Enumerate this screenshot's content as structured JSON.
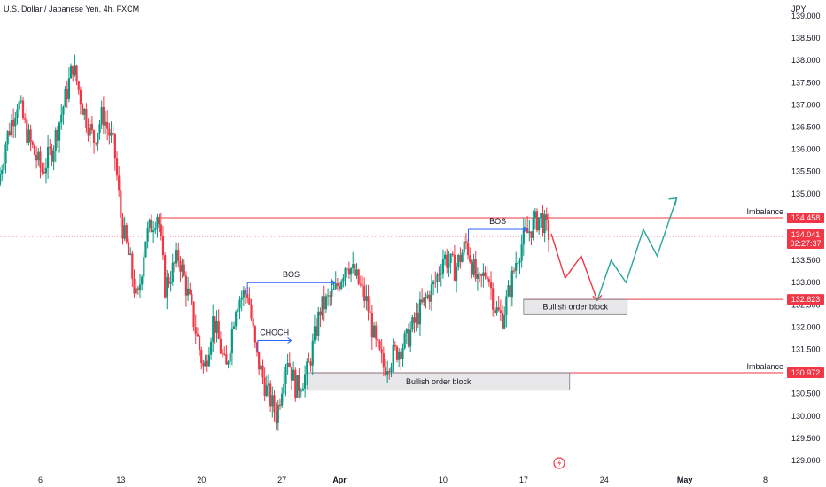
{
  "chart_data": {
    "type": "candlestick",
    "title": "U.S. Dollar / Japanese Yen, 4h, FXCM",
    "currency": "JPY",
    "y_ticks": [
      129.0,
      129.5,
      130.0,
      130.5,
      131.0,
      131.5,
      132.0,
      132.5,
      133.0,
      133.5,
      134.0,
      134.5,
      135.0,
      135.5,
      136.0,
      136.5,
      137.0,
      137.5,
      138.0,
      138.5,
      139.0
    ],
    "y_tick_labels": [
      "129.000",
      "129.500",
      "130.000",
      "130.500",
      "131.000",
      "131.500",
      "132.000",
      "132.500",
      "133.000",
      "133.500",
      "134.000",
      "134.500",
      "135.000",
      "135.500",
      "136.000",
      "136.500",
      "137.000",
      "137.500",
      "138.000",
      "138.500",
      "139.000"
    ],
    "ylim": [
      128.8,
      139.2
    ],
    "x_ticks": [
      {
        "label": "6",
        "day": 6
      },
      {
        "label": "13",
        "day": 13
      },
      {
        "label": "20",
        "day": 20
      },
      {
        "label": "27",
        "day": 27
      },
      {
        "label": "Apr",
        "day": 32
      },
      {
        "label": "10",
        "day": 41
      },
      {
        "label": "17",
        "day": 48
      },
      {
        "label": "24",
        "day": 55
      },
      {
        "label": "May",
        "day": 62
      },
      {
        "label": "8",
        "day": 69
      }
    ],
    "xlim": [
      2.5,
      70.5
    ],
    "anchors": [
      [
        2.5,
        135.2
      ],
      [
        3.2,
        136.2
      ],
      [
        4.2,
        137.1
      ],
      [
        5.2,
        136.2
      ],
      [
        6.3,
        135.5
      ],
      [
        7.2,
        136.0
      ],
      [
        8.4,
        137.2
      ],
      [
        9.0,
        137.9
      ],
      [
        9.8,
        137.0
      ],
      [
        10.8,
        136.2
      ],
      [
        11.6,
        136.8
      ],
      [
        12.6,
        136.0
      ],
      [
        13.2,
        134.4
      ],
      [
        14.0,
        133.4
      ],
      [
        14.6,
        132.5
      ],
      [
        15.3,
        134.0
      ],
      [
        16.4,
        134.6
      ],
      [
        17.0,
        132.9
      ],
      [
        18.2,
        133.6
      ],
      [
        19.3,
        132.4
      ],
      [
        20.4,
        131.0
      ],
      [
        21.2,
        132.2
      ],
      [
        22.3,
        131.0
      ],
      [
        23.2,
        132.6
      ],
      [
        24.2,
        132.8
      ],
      [
        24.9,
        131.4
      ],
      [
        25.8,
        130.6
      ],
      [
        26.7,
        130.0
      ],
      [
        27.6,
        131.4
      ],
      [
        28.4,
        130.6
      ],
      [
        29.4,
        131.0
      ],
      [
        30.5,
        132.4
      ],
      [
        31.8,
        132.8
      ],
      [
        32.8,
        133.5
      ],
      [
        33.8,
        133.0
      ],
      [
        34.6,
        132.5
      ],
      [
        35.3,
        131.6
      ],
      [
        36.0,
        131.1
      ],
      [
        36.6,
        131.3
      ],
      [
        38.0,
        131.7
      ],
      [
        39.2,
        132.4
      ],
      [
        40.5,
        133.0
      ],
      [
        41.2,
        133.6
      ],
      [
        42.2,
        133.3
      ],
      [
        43.2,
        133.9
      ],
      [
        44.2,
        132.9
      ],
      [
        45.0,
        133.3
      ],
      [
        45.7,
        132.4
      ],
      [
        46.3,
        132.2
      ],
      [
        47.0,
        132.9
      ],
      [
        47.6,
        133.6
      ],
      [
        48.2,
        134.0
      ],
      [
        49.0,
        134.3
      ],
      [
        49.6,
        134.5
      ],
      [
        50.3,
        134.1
      ]
    ],
    "price_tags": [
      {
        "value": 134.458,
        "label": "134.458",
        "color": "#f23645"
      },
      {
        "value": 134.041,
        "label": "134.041",
        "sub": "02:27:37",
        "color": "#f23645"
      },
      {
        "value": 132.623,
        "label": "132.623",
        "color": "#f23645"
      },
      {
        "value": 130.972,
        "label": "130.972",
        "color": "#f23645"
      }
    ],
    "annotations": {
      "imbalance_top": {
        "label": "Imbalance",
        "price": 134.458,
        "x_start": 16.5
      },
      "imbalance_bottom": {
        "label": "Imbalance",
        "price": 130.972,
        "x_start": 29.5
      },
      "bos_1": {
        "label": "BOS",
        "price": 133.0,
        "x_start": 24.0,
        "x_end": 31.6
      },
      "bos_2": {
        "label": "BOS",
        "price": 134.2,
        "x_start": 43.2,
        "x_end": 48.3
      },
      "choch": {
        "label": "CHOCH",
        "price": 131.7,
        "x_start": 24.9,
        "x_end": 27.8
      },
      "order_block_1": {
        "label": "Bullish order block",
        "top": 132.623,
        "bottom": 132.28,
        "x_start": 48.0,
        "x_end": 57.0
      },
      "order_block_2": {
        "label": "Bullish order block",
        "top": 130.972,
        "bottom": 130.58,
        "x_start": 29.2,
        "x_end": 52.0
      }
    },
    "projection_red": [
      [
        50.4,
        134.1
      ],
      [
        51.6,
        133.1
      ],
      [
        53.0,
        133.6
      ],
      [
        54.4,
        132.6
      ]
    ],
    "projection_green": [
      [
        54.4,
        132.6
      ],
      [
        55.6,
        133.5
      ],
      [
        56.9,
        133.0
      ],
      [
        58.4,
        134.2
      ],
      [
        59.6,
        133.6
      ],
      [
        61.3,
        134.9
      ]
    ],
    "colors": {
      "up": "#089981",
      "down": "#f23645",
      "projection_red": "#f23645",
      "projection_green": "#26a69a",
      "level": "#f23645",
      "bos": "#2962ff"
    }
  }
}
